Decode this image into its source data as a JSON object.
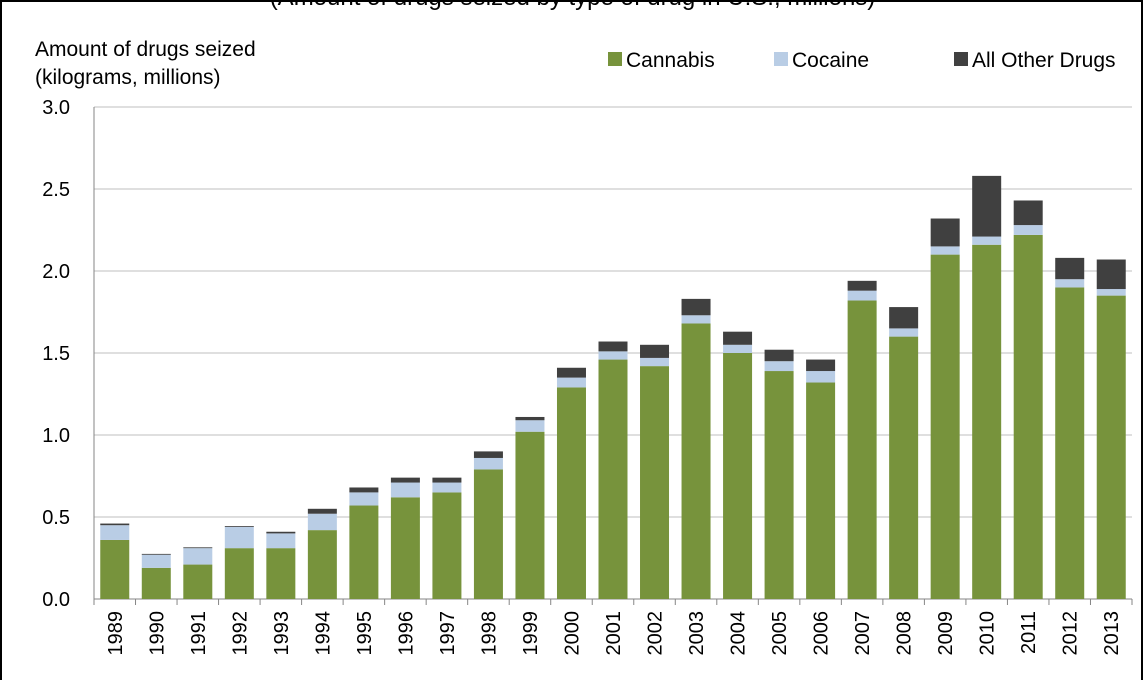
{
  "caption": "(Amount of drugs seized by type of drug in U.S., millions)",
  "chart_data": {
    "type": "bar",
    "stacked": true,
    "ylabel_line1": "Amount of drugs seized",
    "ylabel_line2": "(kilograms, millions)",
    "ylim": [
      0,
      3.0
    ],
    "yticks": [
      "0.0",
      "0.5",
      "1.0",
      "1.5",
      "2.0",
      "2.5",
      "3.0"
    ],
    "grid": true,
    "legend_position": "top-right",
    "categories": [
      "1989",
      "1990",
      "1991",
      "1992",
      "1993",
      "1994",
      "1995",
      "1996",
      "1997",
      "1998",
      "1999",
      "2000",
      "2001",
      "2002",
      "2003",
      "2004",
      "2005",
      "2006",
      "2007",
      "2008",
      "2009",
      "2010",
      "2011",
      "2012",
      "2013"
    ],
    "series": [
      {
        "name": "Cannabis",
        "color": "#77933c",
        "values": [
          0.36,
          0.19,
          0.21,
          0.31,
          0.31,
          0.42,
          0.57,
          0.62,
          0.65,
          0.79,
          1.02,
          1.29,
          1.46,
          1.42,
          1.68,
          1.5,
          1.39,
          1.32,
          1.82,
          1.6,
          2.1,
          2.16,
          2.22,
          1.9,
          1.85
        ]
      },
      {
        "name": "Cocaine",
        "color": "#b9cde5",
        "values": [
          0.09,
          0.08,
          0.1,
          0.13,
          0.09,
          0.1,
          0.08,
          0.09,
          0.06,
          0.07,
          0.07,
          0.06,
          0.05,
          0.05,
          0.05,
          0.05,
          0.06,
          0.07,
          0.06,
          0.05,
          0.05,
          0.05,
          0.06,
          0.05,
          0.04
        ]
      },
      {
        "name": "All Other Drugs",
        "color": "#404040",
        "values": [
          0.01,
          0.005,
          0.005,
          0.005,
          0.01,
          0.03,
          0.03,
          0.03,
          0.03,
          0.04,
          0.02,
          0.06,
          0.06,
          0.08,
          0.1,
          0.08,
          0.07,
          0.07,
          0.06,
          0.13,
          0.17,
          0.37,
          0.15,
          0.13,
          0.18
        ]
      }
    ]
  }
}
